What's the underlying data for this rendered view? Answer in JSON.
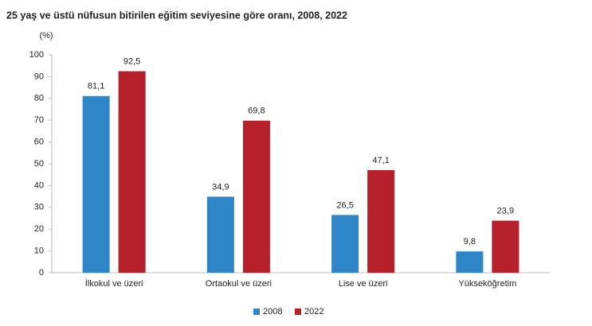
{
  "chart_data": {
    "type": "bar",
    "title": "25 yaş ve üstü nüfusun bitirilen eğitim seviyesine göre oranı, 2008, 2022",
    "y_label": "(%)",
    "categories": [
      "İlkokul ve üzeri",
      "Ortaokul ve üzeri",
      "Lise ve üzeri",
      "Yükseköğretim"
    ],
    "series": [
      {
        "name": "2008",
        "color": "#2e86c8",
        "values": [
          81.1,
          34.9,
          26.5,
          9.8
        ],
        "value_labels": [
          "81,1",
          "34,9",
          "26,5",
          "9,8"
        ]
      },
      {
        "name": "2022",
        "color": "#b5202a",
        "values": [
          92.5,
          69.8,
          47.1,
          23.9
        ],
        "value_labels": [
          "92,5",
          "69,8",
          "47,1",
          "23,9"
        ]
      }
    ],
    "ylim": [
      0,
      100
    ],
    "yticks": [
      0,
      10,
      20,
      30,
      40,
      50,
      60,
      70,
      80,
      90,
      100
    ],
    "grid": false,
    "legend": "bottom"
  }
}
